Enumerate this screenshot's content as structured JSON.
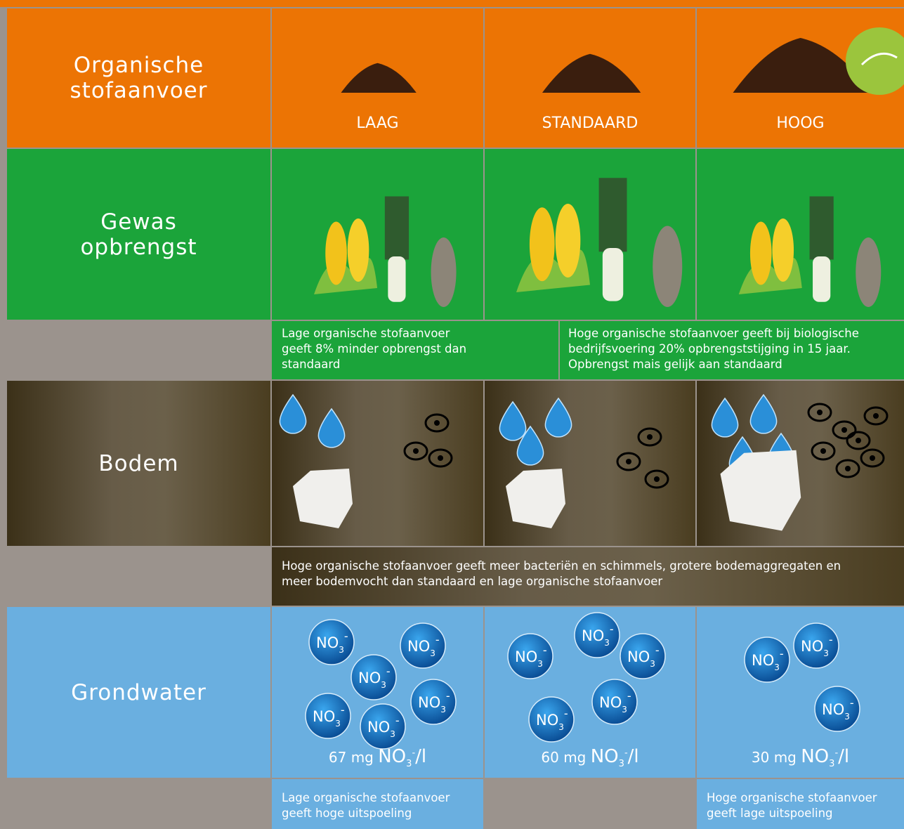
{
  "rows": {
    "supply": "Organische stofaanvoer",
    "yield": "Gewas opbrengst",
    "soil": "Bodem",
    "groundwater": "Grondwater"
  },
  "levels": [
    "LAAG",
    "STANDAARD",
    "HOOG"
  ],
  "yield_notes": [
    "Lage organische stofaanvoer geeft 8% minder opbrengst dan standaard",
    "Hoge organische stofaanvoer geeft bij biologische bedrijfsvoering 20% opbrengststijging in 15 jaar. Opbrengst mais gelijk aan standaard"
  ],
  "soil_note": "Hoge organische stofaanvoer geeft meer bacteriën en schimmels, grotere bodemaggregaten en meer bodemvocht dan standaard en lage organische stofaanvoer",
  "ion": {
    "symbol": "NO",
    "subscript": "3",
    "charge": "-"
  },
  "nitrate": {
    "unit": "mg",
    "per": "/l",
    "values": [
      67,
      60,
      30
    ]
  },
  "leaching_notes": [
    "Lage organische stofaanvoer geeft hoge uitspoeling",
    "Hoge organische stofaanvoer geeft lage uitspoeling"
  ]
}
